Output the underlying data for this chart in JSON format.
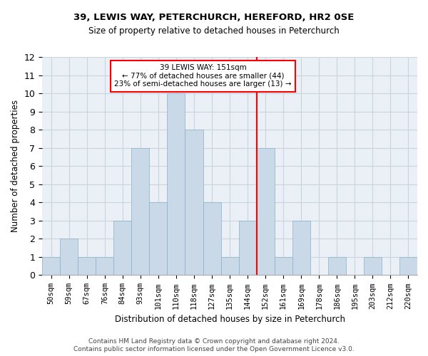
{
  "title1": "39, LEWIS WAY, PETERCHURCH, HEREFORD, HR2 0SE",
  "title2": "Size of property relative to detached houses in Peterchurch",
  "xlabel": "Distribution of detached houses by size in Peterchurch",
  "ylabel": "Number of detached properties",
  "categories": [
    "50sqm",
    "59sqm",
    "67sqm",
    "76sqm",
    "84sqm",
    "93sqm",
    "101sqm",
    "110sqm",
    "118sqm",
    "127sqm",
    "135sqm",
    "144sqm",
    "152sqm",
    "161sqm",
    "169sqm",
    "178sqm",
    "186sqm",
    "195sqm",
    "203sqm",
    "212sqm",
    "220sqm"
  ],
  "values": [
    1,
    2,
    1,
    1,
    3,
    7,
    4,
    10,
    8,
    4,
    1,
    3,
    7,
    1,
    3,
    0,
    1,
    0,
    1,
    0,
    1
  ],
  "bar_color": "#c9d9e8",
  "bar_edge_color": "#8aafc8",
  "grid_color": "#c8d4e0",
  "background_color": "#eaf0f6",
  "vline_x": 11.5,
  "vline_color": "red",
  "annotation_text": "39 LEWIS WAY: 151sqm\n← 77% of detached houses are smaller (44)\n23% of semi-detached houses are larger (13) →",
  "annotation_box_color": "red",
  "ylim": [
    0,
    12
  ],
  "yticks": [
    0,
    1,
    2,
    3,
    4,
    5,
    6,
    7,
    8,
    9,
    10,
    11,
    12
  ],
  "footer1": "Contains HM Land Registry data © Crown copyright and database right 2024.",
  "footer2": "Contains public sector information licensed under the Open Government Licence v3.0."
}
